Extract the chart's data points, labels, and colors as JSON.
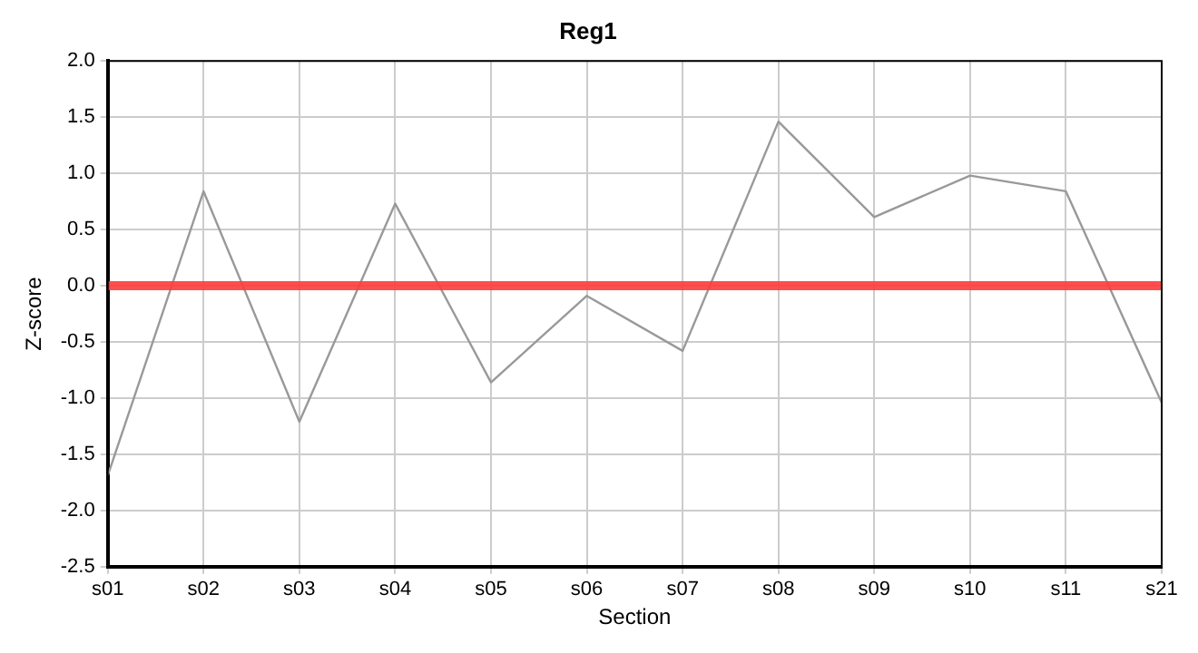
{
  "chart_data": {
    "type": "line",
    "title": "Reg1",
    "xlabel": "Section",
    "ylabel": "Z-score",
    "categories": [
      "s01",
      "s02",
      "s03",
      "s04",
      "s05",
      "s06",
      "s07",
      "s08",
      "s09",
      "s10",
      "s11",
      "s21"
    ],
    "series": [
      {
        "color": "#999999",
        "values": [
          -1.69,
          0.84,
          -1.21,
          0.73,
          -0.86,
          -0.09,
          -0.58,
          1.46,
          0.61,
          0.98,
          0.84,
          -1.04
        ]
      }
    ],
    "ylim": [
      -2.5,
      2.0
    ],
    "yticks": [
      {
        "value": -2.5,
        "label": "-2.5"
      },
      {
        "value": -2,
        "label": "-2.0"
      },
      {
        "value": -1.5,
        "label": "-1.5"
      },
      {
        "value": -1,
        "label": "-1.0"
      },
      {
        "value": -0.5,
        "label": "-0.5"
      },
      {
        "value": 0,
        "label": "0.0"
      },
      {
        "value": 0.5,
        "label": "0.5"
      },
      {
        "value": 1,
        "label": "1.0"
      },
      {
        "value": 1.5,
        "label": "1.5"
      },
      {
        "value": 2,
        "label": "2.0"
      }
    ],
    "ref_lines": [
      {
        "axis": "y",
        "value": 0,
        "color": "#ff3b3b"
      }
    ],
    "grid": true,
    "legend": false,
    "marker": "none",
    "line_style": "solid"
  }
}
